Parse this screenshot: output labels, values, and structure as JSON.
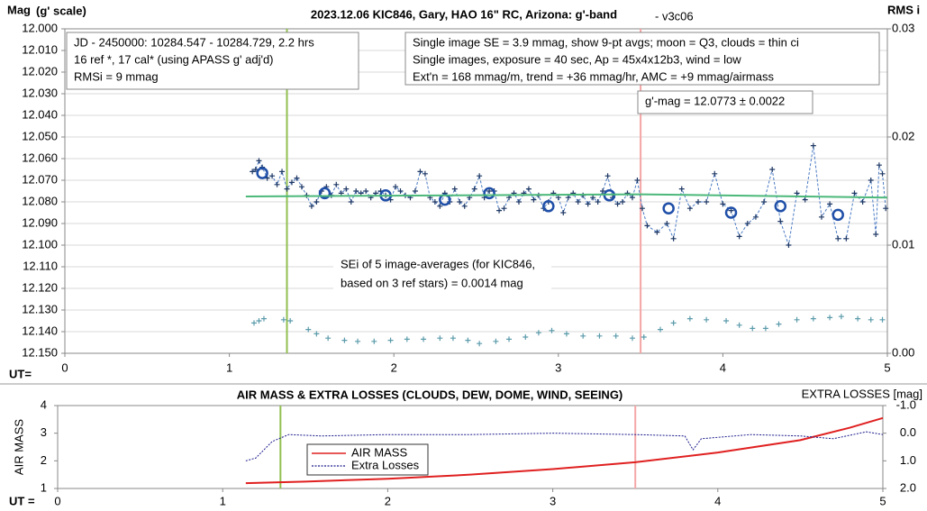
{
  "chart_data": [
    {
      "type": "line",
      "title": "2023.12.06 KIC846, Gary, HAO 16\" RC, Arizona: g'-band",
      "subtitle": "- v3c06",
      "y_label": "Mag",
      "y_label_note": "(g' scale)",
      "y2_label": "RMS i",
      "x_label": "UT=",
      "xlim": [
        0,
        5
      ],
      "xticks": [
        0,
        1,
        2,
        3,
        4,
        5
      ],
      "ylim": [
        12.0,
        12.15
      ],
      "y_inverted": true,
      "yticks": [
        {
          "value": 12.0,
          "label": "12.000"
        },
        {
          "value": 12.01,
          "label": "12.010"
        },
        {
          "value": 12.02,
          "label": "12.020"
        },
        {
          "value": 12.03,
          "label": "12.030"
        },
        {
          "value": 12.04,
          "label": "12.040"
        },
        {
          "value": 12.05,
          "label": "12.050"
        },
        {
          "value": 12.06,
          "label": "12.060"
        },
        {
          "value": 12.07,
          "label": "12.070"
        },
        {
          "value": 12.08,
          "label": "12.080"
        },
        {
          "value": 12.09,
          "label": "12.090"
        },
        {
          "value": 12.1,
          "label": "12.100"
        },
        {
          "value": 12.11,
          "label": "12.110"
        },
        {
          "value": 12.12,
          "label": "12.120"
        },
        {
          "value": 12.13,
          "label": "12.130"
        },
        {
          "value": 12.14,
          "label": "12.140"
        },
        {
          "value": 12.15,
          "label": "12.150"
        }
      ],
      "y2lim": [
        0,
        0.03
      ],
      "y2ticks": [
        {
          "value": 0,
          "label": "0.00"
        },
        {
          "value": 0.01,
          "label": "0.01"
        },
        {
          "value": 0.02,
          "label": "0.02"
        },
        {
          "value": 0.03,
          "label": "0.03"
        }
      ],
      "grid": true,
      "vlines": [
        {
          "x": 1.35,
          "color": "#92c050"
        },
        {
          "x": 3.5,
          "color": "#f4a6a6"
        }
      ],
      "series": [
        {
          "color": "#1f3864",
          "marker": "plus",
          "line": "dashed",
          "line_color": "#4a7ac4",
          "x": [
            1.14,
            1.16,
            1.18,
            1.2,
            1.23,
            1.26,
            1.29,
            1.32,
            1.35,
            1.38,
            1.41,
            1.44,
            1.47,
            1.5,
            1.53,
            1.56,
            1.59,
            1.62,
            1.65,
            1.68,
            1.71,
            1.74,
            1.77,
            1.8,
            1.83,
            1.86,
            1.89,
            1.92,
            1.95,
            1.98,
            2.01,
            2.04,
            2.07,
            2.1,
            2.13,
            2.16,
            2.19,
            2.22,
            2.25,
            2.28,
            2.31,
            2.34,
            2.37,
            2.4,
            2.43,
            2.46,
            2.49,
            2.52,
            2.55,
            2.58,
            2.61,
            2.64,
            2.67,
            2.7,
            2.73,
            2.76,
            2.79,
            2.82,
            2.85,
            2.88,
            2.91,
            2.94,
            2.97,
            3.0,
            3.03,
            3.06,
            3.09,
            3.12,
            3.15,
            3.18,
            3.21,
            3.24,
            3.27,
            3.3,
            3.33,
            3.36,
            3.39,
            3.42,
            3.45,
            3.48,
            3.51,
            3.54,
            3.6,
            3.66,
            3.7,
            3.75,
            3.8,
            3.85,
            3.9,
            3.95,
            4.0,
            4.05,
            4.1,
            4.15,
            4.2,
            4.25,
            4.3,
            4.35,
            4.4,
            4.45,
            4.5,
            4.55,
            4.6,
            4.65,
            4.7,
            4.75,
            4.8,
            4.85,
            4.9,
            4.93,
            4.95,
            4.97,
            4.99
          ],
          "values": [
            12.066,
            12.065,
            12.061,
            12.064,
            12.069,
            12.068,
            12.072,
            12.066,
            12.074,
            12.071,
            12.069,
            12.073,
            12.077,
            12.082,
            12.08,
            12.075,
            12.073,
            12.077,
            12.072,
            12.076,
            12.074,
            12.08,
            12.075,
            12.076,
            12.075,
            12.078,
            12.076,
            12.075,
            12.077,
            12.079,
            12.073,
            12.075,
            12.077,
            12.078,
            12.075,
            12.066,
            12.067,
            12.078,
            12.08,
            12.082,
            12.076,
            12.08,
            12.074,
            12.08,
            12.082,
            12.078,
            12.074,
            12.068,
            12.078,
            12.075,
            12.075,
            12.084,
            12.083,
            12.078,
            12.076,
            12.08,
            12.076,
            12.074,
            12.079,
            12.077,
            12.083,
            12.08,
            12.076,
            12.078,
            12.085,
            12.078,
            12.076,
            12.08,
            12.077,
            12.081,
            12.078,
            12.08,
            12.075,
            12.068,
            12.078,
            12.081,
            12.08,
            12.076,
            12.078,
            12.07,
            12.083,
            12.091,
            12.094,
            12.09,
            12.097,
            12.074,
            12.083,
            12.08,
            12.08,
            12.067,
            12.081,
            12.084,
            12.096,
            12.09,
            12.087,
            12.08,
            12.065,
            12.089,
            12.1,
            12.076,
            12.079,
            12.054,
            12.087,
            12.081,
            12.097,
            12.097,
            12.076,
            12.08,
            12.07,
            12.095,
            12.063,
            12.067,
            12.083
          ]
        },
        {
          "color": "#1f4fa8",
          "marker": "circle",
          "line": "none",
          "x": [
            1.2,
            1.58,
            1.95,
            2.31,
            2.58,
            2.94,
            3.31,
            3.67,
            4.05,
            4.35,
            4.7
          ],
          "values": [
            12.0667,
            12.076,
            12.077,
            12.079,
            12.076,
            12.082,
            12.077,
            12.083,
            12.085,
            12.082,
            12.086
          ]
        },
        {
          "color": "#4cb87a",
          "marker": "none",
          "line": "solid",
          "x": [
            1.1,
            3.5,
            4.5,
            5.0
          ],
          "values": [
            12.0775,
            12.0765,
            12.0775,
            12.078
          ]
        },
        {
          "color": "#5b9bab",
          "marker": "plus",
          "line": "none",
          "axis": "y2",
          "x": [
            1.15,
            1.18,
            1.21,
            1.33,
            1.37,
            1.48,
            1.53,
            1.6,
            1.7,
            1.78,
            1.88,
            1.98,
            2.08,
            2.18,
            2.28,
            2.36,
            2.45,
            2.52,
            2.62,
            2.7,
            2.8,
            2.88,
            2.96,
            3.05,
            3.15,
            3.25,
            3.35,
            3.45,
            3.52,
            3.62,
            3.7,
            3.8,
            3.9,
            4.02,
            4.1,
            4.18,
            4.26,
            4.34,
            4.45,
            4.55,
            4.65,
            4.72,
            4.82,
            4.9,
            4.97
          ],
          "values": [
            0.0028,
            0.003,
            0.0032,
            0.0031,
            0.003,
            0.0022,
            0.0018,
            0.0014,
            0.0012,
            0.0011,
            0.0011,
            0.0012,
            0.0013,
            0.0013,
            0.0014,
            0.0014,
            0.0012,
            0.0009,
            0.0011,
            0.0013,
            0.0015,
            0.0019,
            0.0021,
            0.0018,
            0.0016,
            0.0016,
            0.0016,
            0.0014,
            0.0015,
            0.0022,
            0.0028,
            0.0032,
            0.0031,
            0.003,
            0.0026,
            0.0023,
            0.0023,
            0.0027,
            0.0031,
            0.0032,
            0.0033,
            0.0034,
            0.0032,
            0.0031,
            0.0031
          ]
        }
      ],
      "annotations": [
        [
          "JD - 2450000: 10284.547 - 10284.729, 2.2 hrs",
          "16 ref *, 17 cal* (using APASS g' adj'd)",
          "RMSi = 9 mmag"
        ],
        [
          "Single image SE = 3.9 mmag, show  9-pt avgs; moon = Q3, clouds = thin ci",
          "Single images, exposure = 40 sec, Ap = 45x4x12b3, wind = low",
          "Ext'n = 168 mmag/m, trend = +36 mmag/hr, AMC = +9 mmag/airmass"
        ],
        [
          "g'-mag = 12.0773 ± 0.0022"
        ],
        [
          "SEi of 5 image-averages (for KIC846,",
          "based on 3 ref stars) = 0.0014 mag"
        ]
      ]
    },
    {
      "type": "line",
      "title": "AIR MASS & EXTRA LOSSES (CLOUDS, DEW, DOME, WIND, SEEING)",
      "y_label": "AIR MASS",
      "y2_label": "EXTRA LOSSES [mag]",
      "x_label": "UT =",
      "xlim": [
        0,
        5
      ],
      "xticks": [
        0,
        1,
        2,
        3,
        4,
        5
      ],
      "ylim": [
        1,
        4
      ],
      "yticks": [
        1,
        2,
        3,
        4
      ],
      "y2lim": [
        -1,
        2
      ],
      "y2_inverted": true,
      "y2ticks": [
        {
          "value": -1,
          "label": "-1.0"
        },
        {
          "value": 0,
          "label": "0.0"
        },
        {
          "value": 1,
          "label": "1.0"
        },
        {
          "value": 2,
          "label": "2.0"
        }
      ],
      "grid": false,
      "vlines": [
        {
          "x": 1.35,
          "color": "#92c050"
        },
        {
          "x": 3.5,
          "color": "#f4a6a6"
        }
      ],
      "series": [
        {
          "name": "AIR MASS",
          "color": "#e02020",
          "marker": "none",
          "line": "solid",
          "x": [
            1.14,
            1.5,
            2.0,
            2.5,
            3.0,
            3.5,
            4.0,
            4.5,
            4.8,
            5.0
          ],
          "values": [
            1.19,
            1.25,
            1.35,
            1.5,
            1.7,
            1.95,
            2.3,
            2.75,
            3.2,
            3.55
          ]
        },
        {
          "name": "Extra Losses",
          "color": "#1a1a8c",
          "marker": "none",
          "line": "dotted",
          "axis": "y2",
          "x": [
            1.14,
            1.2,
            1.3,
            1.4,
            1.6,
            2.0,
            2.5,
            3.0,
            3.5,
            3.8,
            3.85,
            3.9,
            4.2,
            4.5,
            4.7,
            4.9,
            5.0
          ],
          "values": [
            1.0,
            0.9,
            0.3,
            0.05,
            0.1,
            0.05,
            0.05,
            0.0,
            0.05,
            0.1,
            0.6,
            0.2,
            0.05,
            0.1,
            0.2,
            -0.05,
            0.05
          ]
        }
      ]
    }
  ]
}
